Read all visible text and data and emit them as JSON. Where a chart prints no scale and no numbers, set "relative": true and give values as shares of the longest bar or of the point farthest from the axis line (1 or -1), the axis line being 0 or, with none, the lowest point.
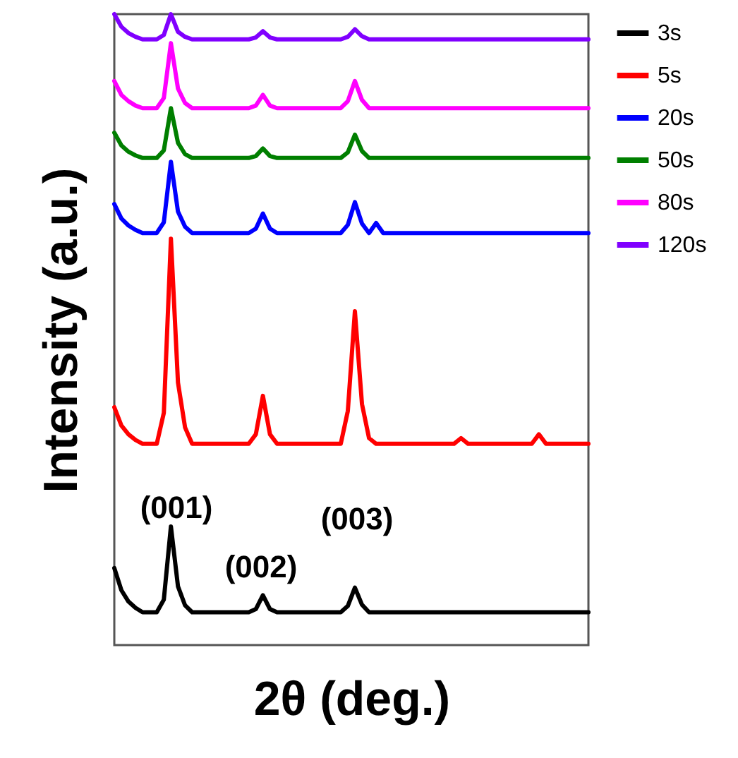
{
  "chart_data": {
    "type": "line",
    "relative": true,
    "xlabel": "2θ (deg.)",
    "ylabel": "Intensity (a.u.)",
    "legend": "right",
    "grid": false,
    "annotations": [
      "(001)",
      "(002)",
      "(003)"
    ],
    "categories": [
      null,
      null,
      null,
      null,
      null,
      null,
      null,
      null,
      null,
      null,
      null,
      null,
      null,
      null,
      null,
      null,
      null,
      null,
      null,
      null,
      null,
      null,
      null,
      null,
      null,
      null,
      null,
      null,
      null,
      null,
      null,
      null,
      null,
      null,
      null,
      null,
      null,
      null,
      null,
      null,
      null,
      null,
      null,
      null,
      null,
      null,
      null,
      null,
      null,
      null,
      null,
      null,
      null,
      null,
      null,
      null,
      null,
      null,
      null,
      null,
      null,
      null,
      null,
      null,
      null,
      null,
      null,
      null
    ],
    "series": [
      {
        "name": "3s",
        "color": "#000000",
        "values": [
          0.122,
          0.087,
          0.069,
          0.059,
          0.052,
          0.052,
          0.052,
          0.072,
          0.188,
          0.093,
          0.063,
          0.052,
          0.052,
          0.052,
          0.052,
          0.052,
          0.052,
          0.052,
          0.052,
          0.052,
          0.057,
          0.079,
          0.057,
          0.052,
          0.052,
          0.052,
          0.052,
          0.052,
          0.052,
          0.052,
          0.052,
          0.052,
          0.052,
          0.062,
          0.091,
          0.064,
          0.052,
          0.052,
          0.052,
          0.052,
          0.052,
          0.052,
          0.052,
          0.052,
          0.052,
          0.052,
          0.052,
          0.052,
          0.052,
          0.052,
          0.052,
          0.052,
          0.052,
          0.052,
          0.052,
          0.052,
          0.052,
          0.052,
          0.052,
          0.052,
          0.052,
          0.052,
          0.052,
          0.052,
          0.052,
          0.052,
          0.052,
          0.052
        ]
      },
      {
        "name": "5s",
        "color": "#ff0000",
        "values": [
          0.377,
          0.348,
          0.334,
          0.325,
          0.319,
          0.319,
          0.319,
          0.368,
          0.644,
          0.416,
          0.345,
          0.319,
          0.319,
          0.319,
          0.319,
          0.319,
          0.319,
          0.319,
          0.319,
          0.319,
          0.334,
          0.395,
          0.334,
          0.319,
          0.319,
          0.319,
          0.319,
          0.319,
          0.319,
          0.319,
          0.319,
          0.319,
          0.319,
          0.371,
          0.529,
          0.382,
          0.328,
          0.319,
          0.319,
          0.319,
          0.319,
          0.319,
          0.319,
          0.319,
          0.319,
          0.319,
          0.319,
          0.319,
          0.319,
          0.328,
          0.319,
          0.319,
          0.319,
          0.319,
          0.319,
          0.319,
          0.319,
          0.319,
          0.319,
          0.319,
          0.334,
          0.319,
          0.319,
          0.319,
          0.319,
          0.319,
          0.319,
          0.319
        ]
      },
      {
        "name": "20s",
        "color": "#0000ff",
        "values": [
          0.699,
          0.676,
          0.665,
          0.658,
          0.653,
          0.653,
          0.653,
          0.67,
          0.766,
          0.687,
          0.663,
          0.653,
          0.653,
          0.653,
          0.653,
          0.653,
          0.653,
          0.653,
          0.653,
          0.653,
          0.66,
          0.684,
          0.66,
          0.653,
          0.653,
          0.653,
          0.653,
          0.653,
          0.653,
          0.653,
          0.653,
          0.653,
          0.653,
          0.666,
          0.702,
          0.668,
          0.653,
          0.669,
          0.653,
          0.653,
          0.653,
          0.653,
          0.653,
          0.653,
          0.653,
          0.653,
          0.653,
          0.653,
          0.653,
          0.653,
          0.653,
          0.653,
          0.653,
          0.653,
          0.653,
          0.653,
          0.653,
          0.653,
          0.653,
          0.653,
          0.653,
          0.653,
          0.653,
          0.653,
          0.653,
          0.653,
          0.653,
          0.653
        ]
      },
      {
        "name": "50s",
        "color": "#007f00",
        "values": [
          0.812,
          0.792,
          0.782,
          0.776,
          0.772,
          0.772,
          0.772,
          0.784,
          0.851,
          0.796,
          0.778,
          0.772,
          0.772,
          0.772,
          0.772,
          0.772,
          0.772,
          0.772,
          0.772,
          0.772,
          0.775,
          0.787,
          0.775,
          0.772,
          0.772,
          0.772,
          0.772,
          0.772,
          0.772,
          0.772,
          0.772,
          0.772,
          0.772,
          0.781,
          0.809,
          0.783,
          0.772,
          0.772,
          0.772,
          0.772,
          0.772,
          0.772,
          0.772,
          0.772,
          0.772,
          0.772,
          0.772,
          0.772,
          0.772,
          0.772,
          0.772,
          0.772,
          0.772,
          0.772,
          0.772,
          0.772,
          0.772,
          0.772,
          0.772,
          0.772,
          0.772,
          0.772,
          0.772,
          0.772,
          0.772,
          0.772,
          0.772,
          0.772
        ]
      },
      {
        "name": "80s",
        "color": "#ff00ff",
        "values": [
          0.894,
          0.872,
          0.862,
          0.855,
          0.851,
          0.851,
          0.851,
          0.867,
          0.954,
          0.882,
          0.859,
          0.851,
          0.851,
          0.851,
          0.851,
          0.851,
          0.851,
          0.851,
          0.851,
          0.851,
          0.855,
          0.872,
          0.855,
          0.851,
          0.851,
          0.851,
          0.851,
          0.851,
          0.851,
          0.851,
          0.851,
          0.851,
          0.851,
          0.862,
          0.894,
          0.864,
          0.851,
          0.851,
          0.851,
          0.851,
          0.851,
          0.851,
          0.851,
          0.851,
          0.851,
          0.851,
          0.851,
          0.851,
          0.851,
          0.851,
          0.851,
          0.851,
          0.851,
          0.851,
          0.851,
          0.851,
          0.851,
          0.851,
          0.851,
          0.851,
          0.851,
          0.851,
          0.851,
          0.851,
          0.851,
          0.851,
          0.851,
          0.851
        ]
      },
      {
        "name": "120s",
        "color": "#8000ff",
        "values": [
          1.0,
          0.98,
          0.97,
          0.964,
          0.96,
          0.96,
          0.96,
          0.967,
          1.0,
          0.972,
          0.964,
          0.96,
          0.96,
          0.96,
          0.96,
          0.96,
          0.96,
          0.96,
          0.96,
          0.96,
          0.963,
          0.973,
          0.963,
          0.96,
          0.96,
          0.96,
          0.96,
          0.96,
          0.96,
          0.96,
          0.96,
          0.96,
          0.96,
          0.964,
          0.976,
          0.965,
          0.96,
          0.96,
          0.96,
          0.96,
          0.96,
          0.96,
          0.96,
          0.96,
          0.96,
          0.96,
          0.96,
          0.96,
          0.96,
          0.96,
          0.96,
          0.96,
          0.96,
          0.96,
          0.96,
          0.96,
          0.96,
          0.96,
          0.96,
          0.96,
          0.96,
          0.96,
          0.96,
          0.96,
          0.96,
          0.96,
          0.96,
          0.96
        ]
      }
    ]
  }
}
